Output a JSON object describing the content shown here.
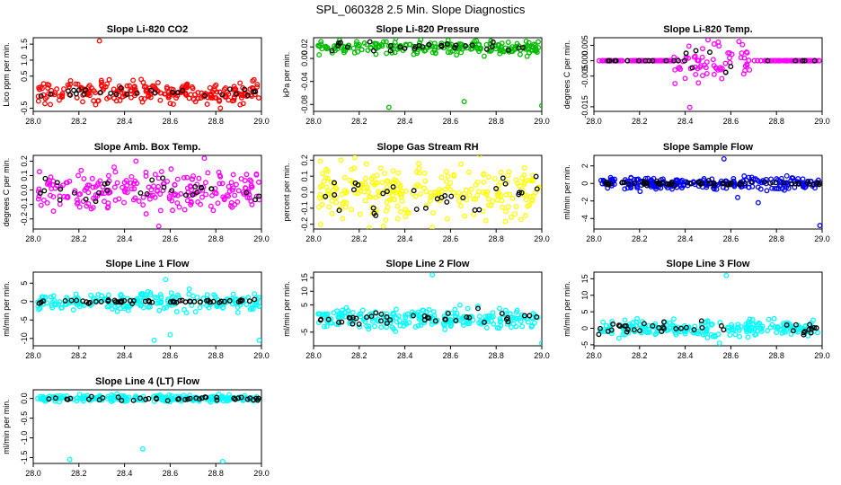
{
  "figure_title": "SPL_060328  2.5 Min. Slope Diagnostics",
  "chart_data": [
    {
      "type": "scatter",
      "title": "Slope Li-820 CO2",
      "ylabel": "Lico ppm per min.",
      "xlim": [
        28.0,
        29.0
      ],
      "ylim": [
        -0.6,
        1.7
      ],
      "x_ticks": [
        "28.0",
        "28.2",
        "28.4",
        "28.6",
        "28.8",
        "29.0"
      ],
      "y_ticks": [
        {
          "v": -0.5,
          "t": "-0.5"
        },
        {
          "v": 0.5,
          "t": "0.5"
        },
        {
          "v": 1.0,
          "t": "1.0"
        },
        {
          "v": 1.5,
          "t": "1.5"
        }
      ],
      "series": [
        {
          "name": "points",
          "color": "#ff0000",
          "count": 240,
          "center": 0.0,
          "spread": 0.17
        },
        {
          "name": "mean",
          "color": "#000000",
          "count": 28,
          "center": 0.0,
          "spread": 0.08
        }
      ],
      "outliers": [
        {
          "x": 28.29,
          "y": 1.6,
          "color": "#ff0000"
        },
        {
          "x": 28.82,
          "y": -0.5,
          "color": "#ff0000"
        }
      ]
    },
    {
      "type": "scatter",
      "title": "Slope Li-820 Pressure",
      "ylabel": "kPa per min.",
      "xlim": [
        28.0,
        29.0
      ],
      "ylim": [
        -0.092,
        0.036
      ],
      "x_ticks": [
        "28.0",
        "28.2",
        "28.4",
        "28.6",
        "28.8",
        "29.0"
      ],
      "y_ticks": [
        {
          "v": -0.08,
          "t": "-0.08"
        },
        {
          "v": -0.04,
          "t": "-0.04"
        },
        {
          "v": 0.0,
          "t": "0.00"
        },
        {
          "v": 0.02,
          "t": "0.02"
        }
      ],
      "series": [
        {
          "name": "points",
          "color": "#00bb00",
          "count": 220,
          "center": 0.019,
          "spread": 0.006
        },
        {
          "name": "mean",
          "color": "#000000",
          "count": 30,
          "center": 0.019,
          "spread": 0.004
        }
      ],
      "outliers": [
        {
          "x": 28.33,
          "y": -0.085,
          "color": "#00bb00"
        },
        {
          "x": 28.66,
          "y": -0.075,
          "color": "#00bb00"
        },
        {
          "x": 29.0,
          "y": -0.082,
          "color": "#00bb00"
        }
      ]
    },
    {
      "type": "scatter",
      "title": "Slope Li-820 Temp.",
      "ylabel": "degrees C per min.",
      "xlim": [
        28.0,
        29.0
      ],
      "ylim": [
        -0.0165,
        0.0075
      ],
      "x_ticks": [
        "28.0",
        "28.2",
        "28.4",
        "28.6",
        "28.8",
        "29.0"
      ],
      "y_ticks": [
        {
          "v": -0.015,
          "t": "-0.015"
        },
        {
          "v": -0.005,
          "t": "-0.005"
        },
        {
          "v": 0.0,
          "t": "0.000"
        },
        {
          "v": 0.005,
          "t": "0.005"
        }
      ],
      "series": [
        {
          "name": "points",
          "color": "#ff00ff",
          "count": 220,
          "center": 0.0,
          "spread": 0.0,
          "burst": {
            "from": 28.35,
            "to": 28.7,
            "spread": 0.004
          }
        },
        {
          "name": "mean",
          "color": "#000000",
          "count": 24,
          "center": 0.0,
          "spread": 0.0,
          "burst": {
            "from": 28.4,
            "to": 28.68,
            "spread": 0.0025
          }
        }
      ],
      "outliers": [
        {
          "x": 28.42,
          "y": -0.0152,
          "color": "#ff00ff"
        },
        {
          "x": 28.5,
          "y": 0.0068,
          "color": "#ff00ff"
        }
      ]
    },
    {
      "type": "scatter",
      "title": "Slope Amb. Box Temp.",
      "ylabel": "degrees C per min.",
      "xlim": [
        28.0,
        29.0
      ],
      "ylim": [
        -0.27,
        0.24
      ],
      "x_ticks": [
        "28.0",
        "28.2",
        "28.4",
        "28.6",
        "28.8",
        "29.0"
      ],
      "y_ticks": [
        {
          "v": -0.2,
          "t": "-0.2"
        },
        {
          "v": -0.1,
          "t": "-0.1"
        },
        {
          "v": 0.0,
          "t": "0.0"
        },
        {
          "v": 0.1,
          "t": "0.1"
        },
        {
          "v": 0.2,
          "t": "0.2"
        }
      ],
      "series": [
        {
          "name": "points",
          "color": "#ff00ff",
          "count": 230,
          "center": 0.0,
          "spread": 0.07
        },
        {
          "name": "mean",
          "color": "#000000",
          "count": 30,
          "center": 0.0,
          "spread": 0.05
        }
      ],
      "outliers": [
        {
          "x": 28.45,
          "y": 0.2,
          "color": "#ff00ff"
        },
        {
          "x": 28.75,
          "y": 0.22,
          "color": "#ff00ff"
        },
        {
          "x": 28.55,
          "y": -0.25,
          "color": "#ff00ff"
        }
      ]
    },
    {
      "type": "scatter",
      "title": "Slope Gas Stream RH",
      "ylabel": "percent per min.",
      "xlim": [
        28.0,
        29.0
      ],
      "ylim": [
        -0.23,
        0.23
      ],
      "x_ticks": [
        "28.0",
        "28.2",
        "28.4",
        "28.6",
        "28.8",
        "29.0"
      ],
      "y_ticks": [
        {
          "v": -0.2,
          "t": "-0.2"
        },
        {
          "v": -0.1,
          "t": "-0.1"
        },
        {
          "v": 0.0,
          "t": "0.0"
        },
        {
          "v": 0.1,
          "t": "0.1"
        },
        {
          "v": 0.2,
          "t": "0.2"
        }
      ],
      "series": [
        {
          "name": "points",
          "color": "#ffff00",
          "count": 260,
          "center": 0.0,
          "spread": 0.085
        },
        {
          "name": "mean",
          "color": "#000000",
          "count": 32,
          "center": 0.0,
          "spread": 0.06
        }
      ],
      "outliers": [
        {
          "x": 28.12,
          "y": 0.2,
          "color": "#ffff00"
        },
        {
          "x": 28.52,
          "y": -0.22,
          "color": "#ffff00"
        }
      ]
    },
    {
      "type": "scatter",
      "title": "Slope Sample Flow",
      "ylabel": "ml/min per min.",
      "xlim": [
        28.0,
        29.0
      ],
      "ylim": [
        -5.2,
        3.2
      ],
      "x_ticks": [
        "28.0",
        "28.2",
        "28.4",
        "28.6",
        "28.8",
        "29.0"
      ],
      "y_ticks": [
        {
          "v": -4,
          "t": "-4"
        },
        {
          "v": -2,
          "t": "-2"
        },
        {
          "v": 0,
          "t": "0"
        },
        {
          "v": 2,
          "t": "2"
        }
      ],
      "series": [
        {
          "name": "points",
          "color": "#0000ff",
          "count": 240,
          "center": 0.0,
          "spread": 0.35
        },
        {
          "name": "mean",
          "color": "#000000",
          "count": 60,
          "center": 0.0,
          "spread": 0.12
        }
      ],
      "outliers": [
        {
          "x": 28.57,
          "y": 2.8,
          "color": "#0000ff"
        },
        {
          "x": 28.72,
          "y": -2.2,
          "color": "#0000ff"
        },
        {
          "x": 28.63,
          "y": -1.6,
          "color": "#0000ff"
        },
        {
          "x": 28.99,
          "y": -4.8,
          "color": "#0000ff"
        }
      ]
    },
    {
      "type": "scatter",
      "title": "Slope Line 1 Flow",
      "ylabel": "ml/min per min.",
      "xlim": [
        28.0,
        29.0
      ],
      "ylim": [
        -12,
        8
      ],
      "x_ticks": [
        "28.0",
        "28.2",
        "28.4",
        "28.6",
        "28.8",
        "29.0"
      ],
      "y_ticks": [
        {
          "v": -10,
          "t": "-10"
        },
        {
          "v": -5,
          "t": "-5"
        },
        {
          "v": 0,
          "t": "0"
        },
        {
          "v": 5,
          "t": "5"
        }
      ],
      "series": [
        {
          "name": "points",
          "color": "#00ffff",
          "count": 230,
          "center": 0.0,
          "spread": 1.2
        },
        {
          "name": "mean",
          "color": "#000000",
          "count": 60,
          "center": 0.0,
          "spread": 0.25
        }
      ],
      "outliers": [
        {
          "x": 28.53,
          "y": -10.5,
          "color": "#00ffff"
        },
        {
          "x": 28.6,
          "y": -9,
          "color": "#00ffff"
        },
        {
          "x": 28.58,
          "y": 6,
          "color": "#00ffff"
        },
        {
          "x": 28.99,
          "y": -10.5,
          "color": "#00ffff"
        }
      ]
    },
    {
      "type": "scatter",
      "title": "Slope Line 2 Flow",
      "ylabel": "ml/min per min.",
      "xlim": [
        28.0,
        29.0
      ],
      "ylim": [
        -10,
        17
      ],
      "x_ticks": [
        "28.0",
        "28.2",
        "28.4",
        "28.6",
        "28.8",
        "29.0"
      ],
      "y_ticks": [
        {
          "v": -5,
          "t": "-5"
        },
        {
          "v": 5,
          "t": "5"
        },
        {
          "v": 10,
          "t": "10"
        },
        {
          "v": 15,
          "t": "15"
        }
      ],
      "series": [
        {
          "name": "points",
          "color": "#00ffff",
          "count": 240,
          "center": 0.0,
          "spread": 1.8
        },
        {
          "name": "mean",
          "color": "#000000",
          "count": 40,
          "center": 0.0,
          "spread": 1.3
        }
      ],
      "outliers": [
        {
          "x": 28.52,
          "y": 16,
          "color": "#00ffff"
        },
        {
          "x": 29.0,
          "y": -9,
          "color": "#00ffff"
        }
      ]
    },
    {
      "type": "scatter",
      "title": "Slope Line 3 Flow",
      "ylabel": "ml/min per min.",
      "xlim": [
        28.0,
        29.0
      ],
      "ylim": [
        -5.3,
        17
      ],
      "x_ticks": [
        "28.0",
        "28.2",
        "28.4",
        "28.6",
        "28.8",
        "29.0"
      ],
      "y_ticks": [
        {
          "v": -5,
          "t": "-5"
        },
        {
          "v": 0,
          "t": "0"
        },
        {
          "v": 5,
          "t": "5"
        },
        {
          "v": 10,
          "t": "10"
        },
        {
          "v": 15,
          "t": "15"
        }
      ],
      "series": [
        {
          "name": "points",
          "color": "#00ffff",
          "count": 240,
          "center": 0.0,
          "spread": 1.3
        },
        {
          "name": "mean",
          "color": "#000000",
          "count": 40,
          "center": 0.0,
          "spread": 0.9
        }
      ],
      "outliers": [
        {
          "x": 28.58,
          "y": 16,
          "color": "#00ffff"
        },
        {
          "x": 28.55,
          "y": -4.5,
          "color": "#00ffff"
        }
      ]
    },
    {
      "type": "scatter",
      "title": "Slope Line 4 (LT) Flow",
      "ylabel": "ml/min per min.",
      "xlim": [
        28.0,
        29.0
      ],
      "ylim": [
        -1.65,
        0.22
      ],
      "x_ticks": [
        "28.0",
        "28.2",
        "28.4",
        "28.6",
        "28.8",
        "29.0"
      ],
      "y_ticks": [
        {
          "v": -1.5,
          "t": "-1.5"
        },
        {
          "v": -1.0,
          "t": "-1.0"
        },
        {
          "v": -0.5,
          "t": "-0.5"
        },
        {
          "v": 0.0,
          "t": "0.0"
        }
      ],
      "series": [
        {
          "name": "points",
          "color": "#00ffff",
          "count": 240,
          "center": 0.0,
          "spread": 0.04
        },
        {
          "name": "mean",
          "color": "#000000",
          "count": 40,
          "center": 0.0,
          "spread": 0.03
        }
      ],
      "outliers": [
        {
          "x": 28.16,
          "y": -1.55,
          "color": "#00ffff"
        },
        {
          "x": 28.48,
          "y": -1.28,
          "color": "#00ffff"
        },
        {
          "x": 28.83,
          "y": -1.6,
          "color": "#00ffff"
        }
      ]
    }
  ]
}
